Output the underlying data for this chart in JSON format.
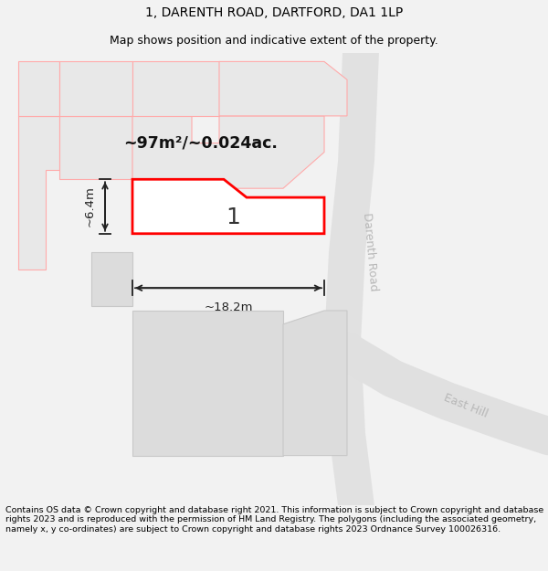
{
  "title": "1, DARENTH ROAD, DARTFORD, DA1 1LP",
  "subtitle": "Map shows position and indicative extent of the property.",
  "footer": "Contains OS data © Crown copyright and database right 2021. This information is subject to Crown copyright and database rights 2023 and is reproduced with the permission of HM Land Registry. The polygons (including the associated geometry, namely x, y co-ordinates) are subject to Crown copyright and database rights 2023 Ordnance Survey 100026316.",
  "bg_color": "#f2f2f2",
  "map_bg": "#ffffff",
  "title_color": "#000000",
  "footer_color": "#000000",
  "road_label_darenth": "Darenth Road",
  "road_label_east": "East Hill",
  "area_label": "~97m²/~0.024ac.",
  "plot_number": "1",
  "dim_width": "~18.2m",
  "dim_height": "~6.4m",
  "plot_fill": "#ffffff",
  "plot_border": "#ff0000",
  "neighbor_fill": "#e8e8e8",
  "neighbor_border": "#ffaaaa",
  "gray_fill": "#dcdcdc",
  "gray_border": "#c8c8c8",
  "road_gray": "#d8d8d8",
  "dim_color": "#222222",
  "road_label_color": "#aaaaaa",
  "title_fontsize": 10,
  "subtitle_fontsize": 9,
  "footer_fontsize": 6.8
}
